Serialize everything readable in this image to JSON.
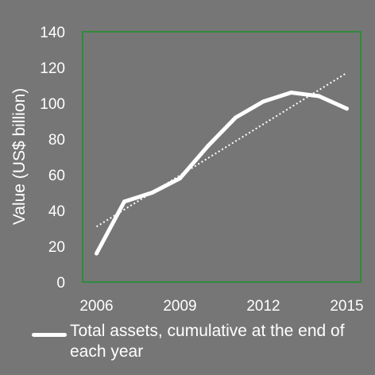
{
  "colors": {
    "background": "#767676",
    "plot_border": "#2e8b3c",
    "series": "#ffffff",
    "trendline": "#ffffff"
  },
  "chart_data": {
    "type": "line",
    "ylabel": "Value (US$ billion)",
    "xlabel": "",
    "xlim": [
      2005.5,
      2015.5
    ],
    "ylim": [
      0,
      140
    ],
    "x_ticks": [
      2006,
      2009,
      2012,
      2015
    ],
    "y_ticks": [
      0,
      20,
      40,
      60,
      80,
      100,
      120,
      140
    ],
    "grid": false,
    "legend_position": "bottom",
    "x": [
      2006,
      2007,
      2008,
      2009,
      2010,
      2011,
      2012,
      2013,
      2014,
      2015
    ],
    "series": [
      {
        "name": "Total assets, cumulative at the end of each year",
        "values": [
          16,
          45,
          50,
          58,
          76,
          92,
          101,
          106,
          104,
          97
        ]
      }
    ],
    "trendline": {
      "style": "dotted",
      "x": [
        2006,
        2015
      ],
      "values": [
        31,
        117
      ]
    }
  }
}
